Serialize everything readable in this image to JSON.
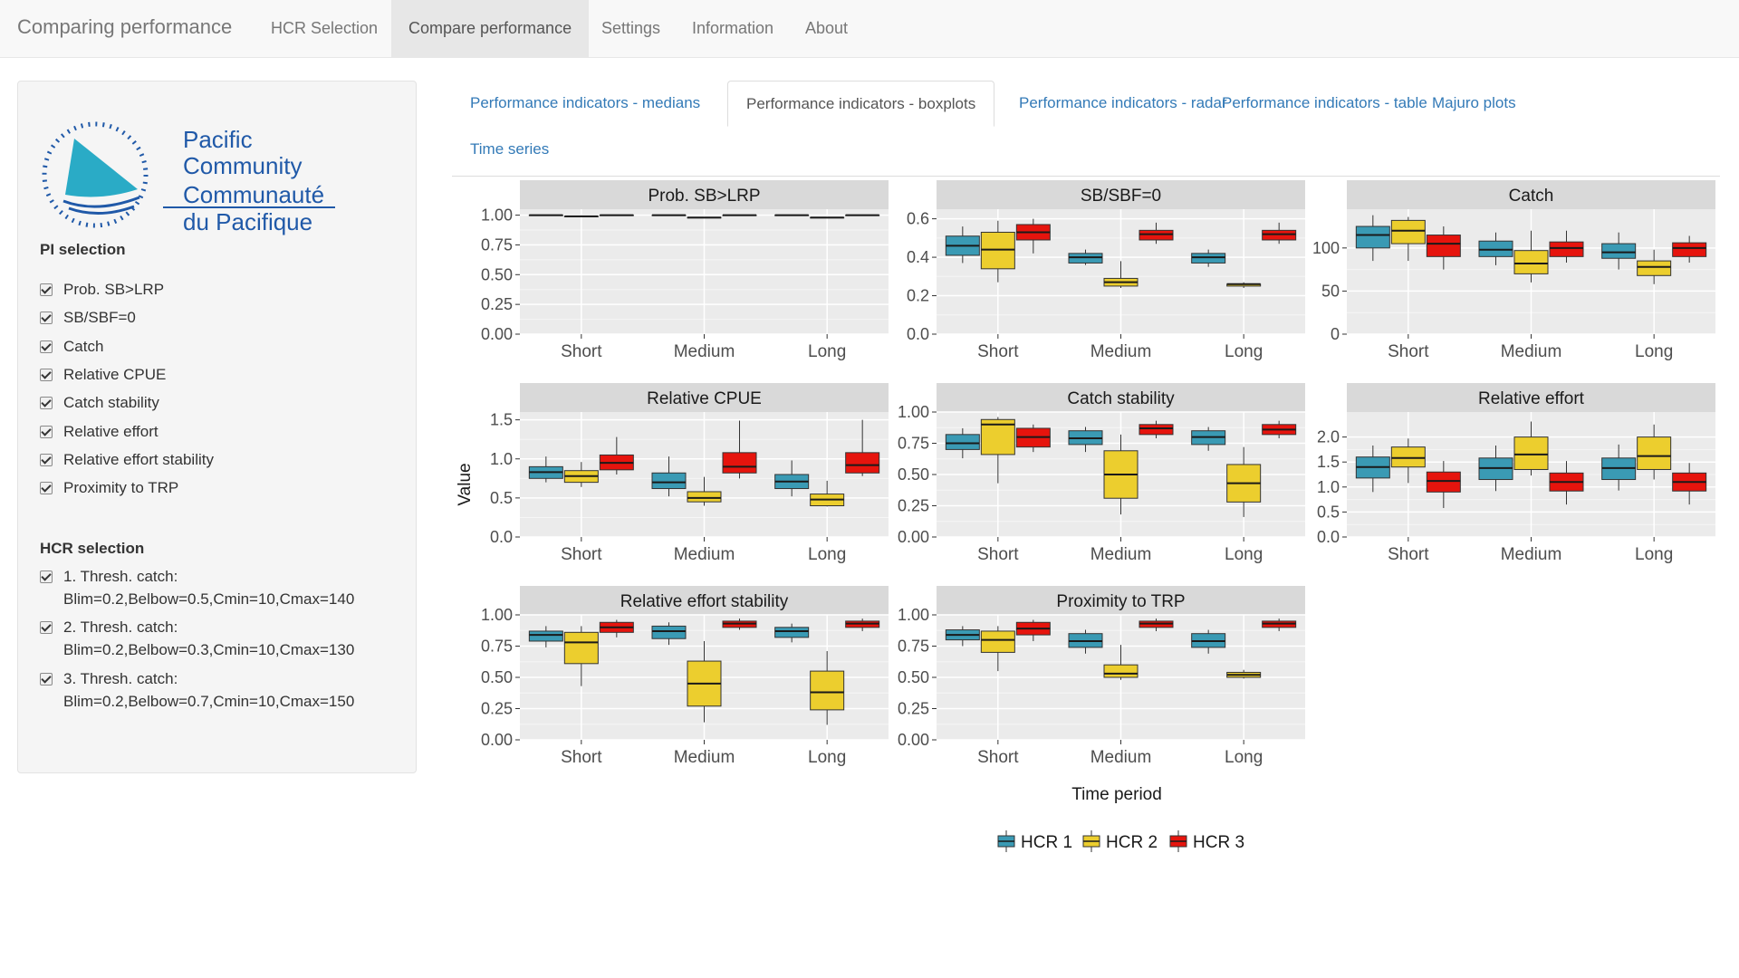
{
  "navbar": {
    "brand": "Comparing performance",
    "items": [
      {
        "label": "HCR Selection",
        "active": false
      },
      {
        "label": "Compare performance",
        "active": true
      },
      {
        "label": "Settings",
        "active": false
      },
      {
        "label": "Information",
        "active": false
      },
      {
        "label": "About",
        "active": false
      }
    ]
  },
  "sidebar": {
    "logo": {
      "line1": "Pacific",
      "line2": "Community",
      "line3": "Communauté",
      "line4": "du Pacifique"
    },
    "pi_title": "PI selection",
    "pi_items": [
      {
        "label": "Prob. SB>LRP",
        "checked": true
      },
      {
        "label": "SB/SBF=0",
        "checked": true
      },
      {
        "label": "Catch",
        "checked": true
      },
      {
        "label": "Relative CPUE",
        "checked": true
      },
      {
        "label": "Catch stability",
        "checked": true
      },
      {
        "label": "Relative effort",
        "checked": true
      },
      {
        "label": "Relative effort stability",
        "checked": true
      },
      {
        "label": "Proximity to TRP",
        "checked": true
      }
    ],
    "hcr_title": "HCR selection",
    "hcr_items": [
      {
        "line1": "1. Thresh. catch:",
        "line2": "Blim=0.2,Belbow=0.5,Cmin=10,Cmax=140",
        "checked": true
      },
      {
        "line1": "2. Thresh. catch:",
        "line2": "Blim=0.2,Belbow=0.3,Cmin=10,Cmax=130",
        "checked": true
      },
      {
        "line1": "3. Thresh. catch:",
        "line2": "Blim=0.2,Belbow=0.7,Cmin=10,Cmax=150",
        "checked": true
      }
    ]
  },
  "tabs": [
    {
      "label": "Performance indicators - medians",
      "active": false
    },
    {
      "label": "Performance indicators - boxplots",
      "active": true
    },
    {
      "label": "Performance indicators - radar",
      "active": false
    },
    {
      "label": "Performance indicators - table",
      "active": false
    },
    {
      "label": "Majuro plots",
      "active": false
    },
    {
      "label": "Time series",
      "active": false
    }
  ],
  "colors": {
    "HCR 1": "#3a9ab4",
    "HCR 2": "#ecce2e",
    "HCR 3": "#e6140d"
  },
  "chart_data": {
    "type": "boxplot",
    "xlabel": "Time period",
    "ylabel": "Value",
    "legend": [
      "HCR 1",
      "HCR 2",
      "HCR 3"
    ],
    "legend_position": "bottom",
    "categories": [
      "Short",
      "Medium",
      "Long"
    ],
    "panels": [
      {
        "title": "Prob. SB>LRP",
        "ylim": [
          0,
          1.05
        ],
        "ticks": [
          0,
          0.25,
          0.5,
          0.75,
          1.0
        ],
        "tick_labels": [
          "0.00",
          "0.25",
          "0.50",
          "0.75",
          "1.00"
        ],
        "boxes": [
          [
            [
              1,
              1,
              1,
              1,
              1
            ],
            [
              0.99,
              0.99,
              0.99,
              0.99,
              0.99
            ],
            [
              1,
              1,
              1,
              1,
              1
            ]
          ],
          [
            [
              1,
              1,
              1,
              1,
              1
            ],
            [
              0.98,
              0.98,
              0.98,
              0.98,
              0.98
            ],
            [
              1,
              1,
              1,
              1,
              1
            ]
          ],
          [
            [
              1,
              1,
              1,
              1,
              1
            ],
            [
              0.98,
              0.98,
              0.98,
              0.98,
              0.98
            ],
            [
              1,
              1,
              1,
              1,
              1
            ]
          ]
        ]
      },
      {
        "title": "SB/SBF=0",
        "ylim": [
          0,
          0.65
        ],
        "ticks": [
          0,
          0.2,
          0.4,
          0.6
        ],
        "tick_labels": [
          "0.0",
          "0.2",
          "0.4",
          "0.6"
        ],
        "boxes": [
          [
            [
              0.37,
              0.41,
              0.46,
              0.51,
              0.56
            ],
            [
              0.27,
              0.34,
              0.44,
              0.53,
              0.59
            ],
            [
              0.42,
              0.49,
              0.53,
              0.57,
              0.6
            ]
          ],
          [
            [
              0.36,
              0.37,
              0.4,
              0.42,
              0.44
            ],
            [
              0.24,
              0.25,
              0.27,
              0.29,
              0.38
            ],
            [
              0.47,
              0.49,
              0.52,
              0.54,
              0.58
            ]
          ],
          [
            [
              0.35,
              0.37,
              0.4,
              0.42,
              0.44
            ],
            [
              0.24,
              0.25,
              0.26,
              0.26,
              0.27
            ],
            [
              0.47,
              0.49,
              0.52,
              0.54,
              0.58
            ]
          ]
        ]
      },
      {
        "title": "Catch",
        "ylim": [
          0,
          145
        ],
        "ticks": [
          0,
          50,
          100
        ],
        "tick_labels": [
          "0",
          "50",
          "100"
        ],
        "boxes": [
          [
            [
              85,
              100,
              115,
              125,
              138
            ],
            [
              85,
              105,
              120,
              132,
              136
            ],
            [
              75,
              90,
              105,
              115,
              125
            ]
          ],
          [
            [
              80,
              90,
              98,
              108,
              118
            ],
            [
              60,
              70,
              82,
              97,
              120
            ],
            [
              83,
              90,
              100,
              107,
              120
            ]
          ],
          [
            [
              75,
              88,
              95,
              105,
              118
            ],
            [
              58,
              68,
              78,
              85,
              98
            ],
            [
              83,
              90,
              100,
              106,
              114
            ]
          ]
        ]
      },
      {
        "title": "Relative CPUE",
        "ylim": [
          0,
          1.6
        ],
        "ticks": [
          0,
          0.5,
          1.0,
          1.5
        ],
        "tick_labels": [
          "0.0",
          "0.5",
          "1.0",
          "1.5"
        ],
        "boxes": [
          [
            [
              0.7,
              0.75,
              0.83,
              0.9,
              1.03
            ],
            [
              0.64,
              0.7,
              0.78,
              0.85,
              0.96
            ],
            [
              0.8,
              0.86,
              0.95,
              1.05,
              1.28
            ]
          ],
          [
            [
              0.52,
              0.62,
              0.7,
              0.82,
              1.03
            ],
            [
              0.4,
              0.45,
              0.5,
              0.58,
              0.77
            ],
            [
              0.75,
              0.82,
              0.9,
              1.08,
              1.49
            ]
          ],
          [
            [
              0.52,
              0.62,
              0.71,
              0.8,
              0.98
            ],
            [
              0.39,
              0.4,
              0.48,
              0.55,
              0.72
            ],
            [
              0.78,
              0.82,
              0.92,
              1.08,
              1.5
            ]
          ]
        ]
      },
      {
        "title": "Catch stability",
        "ylim": [
          0,
          1.0
        ],
        "ticks": [
          0,
          0.25,
          0.5,
          0.75,
          1.0
        ],
        "tick_labels": [
          "0.00",
          "0.25",
          "0.50",
          "0.75",
          "1.00"
        ],
        "boxes": [
          [
            [
              0.63,
              0.7,
              0.75,
              0.82,
              0.87
            ],
            [
              0.43,
              0.66,
              0.9,
              0.94,
              0.96
            ],
            [
              0.68,
              0.72,
              0.8,
              0.87,
              0.9
            ]
          ],
          [
            [
              0.68,
              0.74,
              0.79,
              0.85,
              0.88
            ],
            [
              0.18,
              0.31,
              0.5,
              0.69,
              0.82
            ],
            [
              0.79,
              0.82,
              0.87,
              0.9,
              0.93
            ]
          ],
          [
            [
              0.69,
              0.74,
              0.8,
              0.85,
              0.88
            ],
            [
              0.16,
              0.28,
              0.43,
              0.58,
              0.72
            ],
            [
              0.79,
              0.82,
              0.86,
              0.9,
              0.93
            ]
          ]
        ]
      },
      {
        "title": "Relative effort",
        "ylim": [
          0,
          2.5
        ],
        "ticks": [
          0,
          0.5,
          1.0,
          1.5,
          2.0
        ],
        "tick_labels": [
          "0.0",
          "0.5",
          "1.0",
          "1.5",
          "2.0"
        ],
        "boxes": [
          [
            [
              0.9,
              1.18,
              1.4,
              1.6,
              1.83
            ],
            [
              1.08,
              1.4,
              1.58,
              1.8,
              1.97
            ],
            [
              0.58,
              0.9,
              1.12,
              1.3,
              1.52
            ]
          ],
          [
            [
              0.92,
              1.15,
              1.38,
              1.58,
              1.83
            ],
            [
              1.23,
              1.35,
              1.65,
              2.0,
              2.31
            ],
            [
              0.65,
              0.92,
              1.1,
              1.28,
              1.52
            ]
          ],
          [
            [
              0.93,
              1.15,
              1.38,
              1.58,
              1.85
            ],
            [
              1.15,
              1.35,
              1.62,
              2.0,
              2.25
            ],
            [
              0.65,
              0.92,
              1.1,
              1.28,
              1.48
            ]
          ]
        ]
      },
      {
        "title": "Relative effort stability",
        "ylim": [
          0,
          1.0
        ],
        "ticks": [
          0,
          0.25,
          0.5,
          0.75,
          1.0
        ],
        "tick_labels": [
          "0.00",
          "0.25",
          "0.50",
          "0.75",
          "1.00"
        ],
        "boxes": [
          [
            [
              0.74,
              0.79,
              0.84,
              0.87,
              0.91
            ],
            [
              0.43,
              0.61,
              0.78,
              0.86,
              0.91
            ],
            [
              0.82,
              0.86,
              0.9,
              0.94,
              0.96
            ]
          ],
          [
            [
              0.76,
              0.81,
              0.87,
              0.91,
              0.94
            ],
            [
              0.14,
              0.27,
              0.45,
              0.63,
              0.79
            ],
            [
              0.88,
              0.9,
              0.93,
              0.95,
              0.97
            ]
          ],
          [
            [
              0.78,
              0.82,
              0.87,
              0.9,
              0.93
            ],
            [
              0.12,
              0.24,
              0.38,
              0.55,
              0.71
            ],
            [
              0.87,
              0.9,
              0.93,
              0.95,
              0.97
            ]
          ]
        ]
      },
      {
        "title": "Proximity to TRP",
        "ylim": [
          0,
          1.0
        ],
        "ticks": [
          0,
          0.25,
          0.5,
          0.75,
          1.0
        ],
        "tick_labels": [
          "0.00",
          "0.25",
          "0.50",
          "0.75",
          "1.00"
        ],
        "boxes": [
          [
            [
              0.75,
              0.8,
              0.84,
              0.88,
              0.91
            ],
            [
              0.55,
              0.7,
              0.8,
              0.87,
              0.91
            ],
            [
              0.79,
              0.84,
              0.89,
              0.94,
              0.96
            ]
          ],
          [
            [
              0.69,
              0.74,
              0.79,
              0.85,
              0.88
            ],
            [
              0.48,
              0.5,
              0.53,
              0.6,
              0.76
            ],
            [
              0.87,
              0.9,
              0.93,
              0.95,
              0.97
            ]
          ],
          [
            [
              0.69,
              0.74,
              0.79,
              0.85,
              0.88
            ],
            [
              0.49,
              0.5,
              0.52,
              0.54,
              0.56
            ],
            [
              0.87,
              0.9,
              0.93,
              0.95,
              0.97
            ]
          ]
        ]
      }
    ]
  }
}
